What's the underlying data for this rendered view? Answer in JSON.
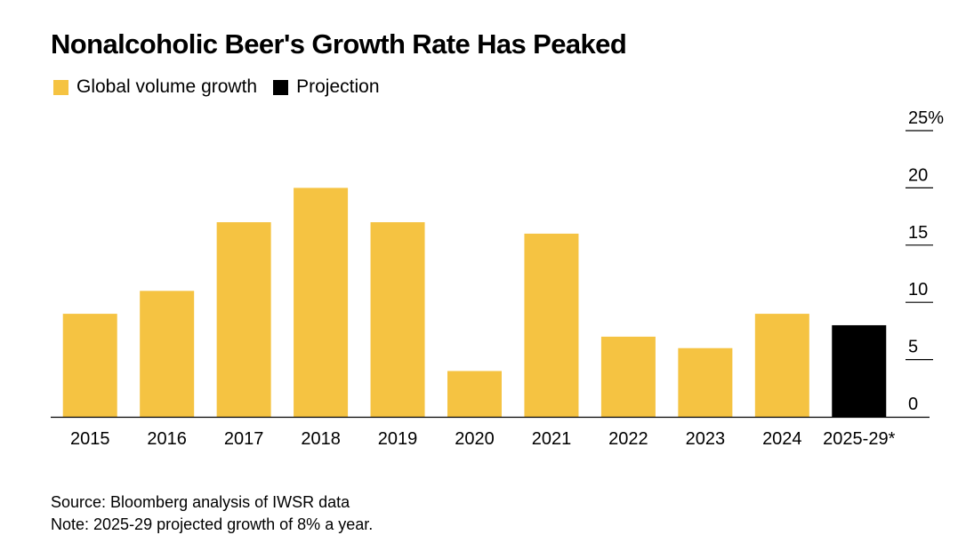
{
  "title": "Nonalcoholic Beer's Growth Rate Has Peaked",
  "legend": [
    {
      "label": "Global volume growth",
      "color": "#F5C342"
    },
    {
      "label": "Projection",
      "color": "#000000"
    }
  ],
  "footer": {
    "source": "Source: Bloomberg analysis of IWSR data",
    "note": "Note: 2025-29 projected growth of 8% a year."
  },
  "chart_data": {
    "type": "bar",
    "categories": [
      "2015",
      "2016",
      "2017",
      "2018",
      "2019",
      "2020",
      "2021",
      "2022",
      "2023",
      "2024",
      "2025-29*"
    ],
    "series": [
      {
        "name": "Global volume growth",
        "values": [
          9,
          11,
          17,
          20,
          17,
          4,
          16,
          7,
          6,
          9,
          null
        ],
        "color": "#F5C342"
      },
      {
        "name": "Projection",
        "values": [
          null,
          null,
          null,
          null,
          null,
          null,
          null,
          null,
          null,
          null,
          8
        ],
        "color": "#000000"
      }
    ],
    "ylim": [
      0,
      25
    ],
    "yticks": [
      0,
      5,
      10,
      15,
      20,
      25
    ],
    "ytick_labels": [
      "0",
      "5",
      "10",
      "15",
      "20",
      "25%"
    ],
    "y_axis_side": "right",
    "legend_position": "top-left",
    "grid": false
  }
}
